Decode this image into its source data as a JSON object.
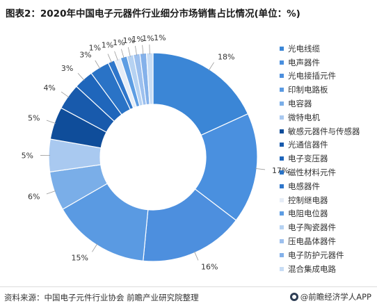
{
  "header": {
    "title": "图表2：2020年中国电子元器件行业细分市场销售占比情况(单位：%)"
  },
  "footer": {
    "source": "资料来源：中国电子元件行业协会 前瞻产业研究院整理",
    "brand": "@前瞻经济学人APP"
  },
  "chart_data": {
    "type": "pie",
    "donut": true,
    "legend_position": "right",
    "value_label_suffix": "%",
    "slices": [
      {
        "name": "光电线缆",
        "value": 18,
        "color": "#3b86d6"
      },
      {
        "name": "电声器件",
        "value": 17,
        "color": "#4a90df"
      },
      {
        "name": "光电接插元件",
        "value": 16,
        "color": "#4d8fde"
      },
      {
        "name": "印制电路板",
        "value": 15,
        "color": "#5a9ae2"
      },
      {
        "name": "电容器",
        "value": 6,
        "color": "#7aaee8"
      },
      {
        "name": "微特电机",
        "value": 5,
        "color": "#a9c9f0"
      },
      {
        "name": "敏感元器件与传感器",
        "value": 5,
        "color": "#0f4d9a"
      },
      {
        "name": "光通信器件",
        "value": 4,
        "color": "#185aac"
      },
      {
        "name": "电子变压器",
        "value": 3,
        "color": "#1f66bb"
      },
      {
        "name": "磁性材料元件",
        "value": 3,
        "color": "#2a73c6"
      },
      {
        "name": "电感器件",
        "value": 1,
        "color": "#2e76cb"
      },
      {
        "name": "控制继电器",
        "value": 1,
        "color": "#e6edf7"
      },
      {
        "name": "电阻电位器",
        "value": 1,
        "color": "#5d9de3"
      },
      {
        "name": "电子陶瓷器件",
        "value": 1,
        "color": "#b6d2f2"
      },
      {
        "name": "压电晶体器件",
        "value": 1,
        "color": "#9dc0ee"
      },
      {
        "name": "电子防护元器件",
        "value": 1,
        "color": "#84b1ea"
      },
      {
        "name": "混合集成电路",
        "value": 1,
        "color": "#c8ddf5"
      }
    ]
  }
}
